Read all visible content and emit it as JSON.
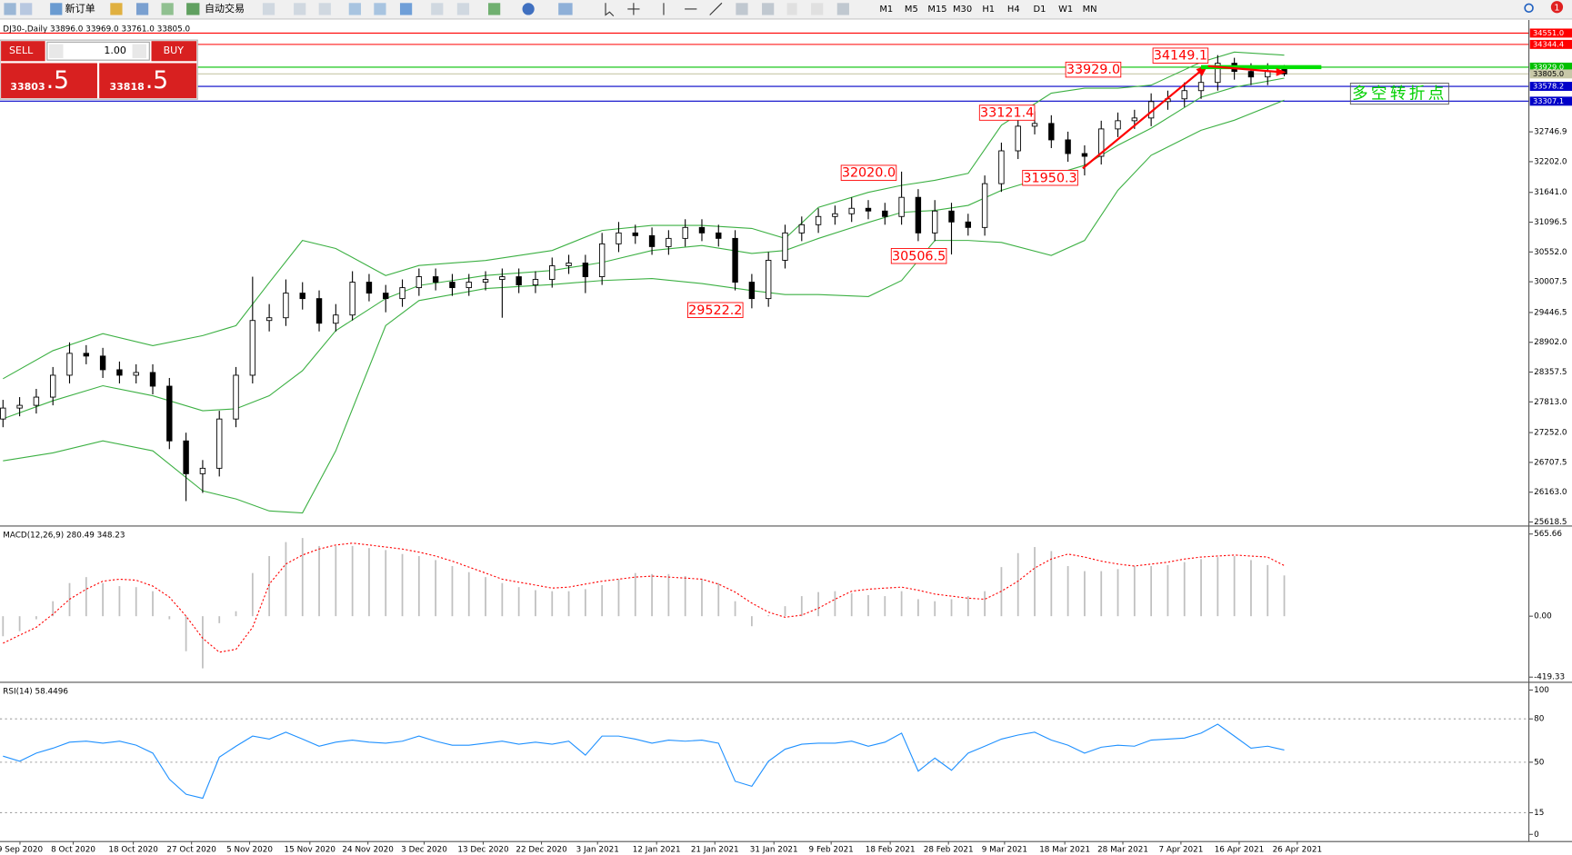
{
  "toolbar": {
    "buttons": [
      "新订单",
      "自动交易"
    ],
    "timeframes": [
      "M1",
      "M5",
      "M15",
      "M30",
      "H1",
      "H4",
      "D1",
      "W1",
      "MN"
    ],
    "notification_count": 1
  },
  "trade_panel": {
    "sell": "SELL",
    "buy": "BUY",
    "volume": "1.00",
    "sell_price": {
      "main": "33803",
      "big": ".5"
    },
    "buy_price": {
      "main": "33818",
      "big": ".5"
    }
  },
  "chart_data": [
    {
      "type": "candlestick",
      "title": "DJ30-,Daily  33896.0 33969.0 33761.0 33805.0",
      "open": [
        27500,
        27700,
        27750,
        27900,
        28300,
        28700,
        28650,
        28400,
        28300,
        28350,
        28100,
        27100,
        26500,
        26600,
        27500,
        28300,
        29300,
        29350,
        29800,
        29700,
        29250,
        29400,
        30000,
        29800,
        29700,
        29900,
        30100,
        30000,
        29900,
        30000,
        30050,
        30100,
        29950,
        30050,
        30300,
        30350,
        30100,
        30700,
        30900,
        30850,
        30650,
        30800,
        31000,
        30900,
        30800,
        30000,
        29700,
        30400,
        30900,
        31050,
        31200,
        31250,
        31350,
        31300,
        31200,
        31550,
        30900,
        31300,
        31100,
        31000,
        31800,
        32400,
        32850,
        32900,
        32600,
        32350,
        32300,
        32800,
        32950,
        33000,
        33300,
        33350,
        33500,
        33650,
        34000,
        33850,
        33750,
        33896.0
      ],
      "high": [
        27850,
        27900,
        28050,
        28450,
        28900,
        28850,
        28800,
        28550,
        28500,
        28500,
        28250,
        27250,
        26750,
        27650,
        28450,
        30100,
        29600,
        30050,
        30000,
        29850,
        29600,
        30200,
        30150,
        29950,
        30050,
        30250,
        30250,
        30150,
        30150,
        30200,
        30250,
        30250,
        30200,
        30450,
        30500,
        30500,
        30900,
        31100,
        31050,
        31000,
        30950,
        31150,
        31150,
        31050,
        30950,
        30150,
        30550,
        31050,
        31200,
        31350,
        31400,
        31550,
        31500,
        31450,
        32020.0,
        31700,
        31500,
        31450,
        31250,
        31950,
        32550,
        33000,
        33121.4,
        33050,
        32750,
        32500,
        32950,
        33100,
        33150,
        33450,
        33500,
        33650,
        33850,
        34149.1,
        34100,
        34000,
        34000,
        33969.0
      ],
      "low": [
        27350,
        27550,
        27600,
        27750,
        28150,
        28500,
        28250,
        28150,
        28150,
        27950,
        26950,
        26000,
        26150,
        26450,
        27350,
        28150,
        29100,
        29200,
        29500,
        29100,
        29100,
        29300,
        29650,
        29450,
        29550,
        29750,
        29850,
        29750,
        29750,
        29850,
        29350,
        29800,
        29800,
        29900,
        30150,
        29800,
        29950,
        30550,
        30700,
        30500,
        30500,
        30650,
        30750,
        30650,
        29850,
        29522.2,
        29550,
        30250,
        30750,
        30900,
        31050,
        31100,
        31150,
        31050,
        31050,
        30750,
        30750,
        30506.5,
        30850,
        30850,
        31650,
        32250,
        32700,
        32450,
        32200,
        31950.3,
        32150,
        32650,
        32800,
        32850,
        33150,
        33200,
        33350,
        33500,
        33700,
        33600,
        33600,
        33761.0
      ],
      "close": [
        27700,
        27750,
        27900,
        28300,
        28700,
        28650,
        28400,
        28300,
        28350,
        28100,
        27100,
        26500,
        26600,
        27500,
        28300,
        29300,
        29350,
        29800,
        29700,
        29250,
        29400,
        30000,
        29800,
        29700,
        29900,
        30100,
        30000,
        29900,
        30000,
        30050,
        30100,
        29950,
        30050,
        30300,
        30350,
        30100,
        30700,
        30900,
        30850,
        30650,
        30800,
        31000,
        30900,
        30800,
        30000,
        29700,
        30400,
        30900,
        31050,
        31200,
        31250,
        31350,
        31300,
        31200,
        31550,
        30900,
        31300,
        31100,
        31000,
        31800,
        32400,
        32850,
        32900,
        32600,
        32350,
        32300,
        32800,
        32950,
        33000,
        33300,
        33350,
        33500,
        33650,
        34000,
        33850,
        33750,
        33850,
        33805.0
      ],
      "up_color": "#ffffff",
      "down_color": "#000000",
      "xlim": [
        -0.18,
        91.7
      ],
      "ylim": [
        25582,
        34753
      ],
      "yticks": [
        32746.9,
        {
          "value": 32202,
          "label": "32202.0"
        },
        {
          "value": 31641,
          "label": "31641.0"
        },
        31096.5,
        {
          "value": 30552,
          "label": "30552.0"
        },
        30007.5,
        29446.5,
        {
          "value": 28902,
          "label": "28902.0"
        },
        28357.5,
        {
          "value": 27813,
          "label": "27813.0"
        },
        {
          "value": 27252,
          "label": "27252.0"
        },
        26707.5,
        {
          "value": 26163,
          "label": "26163.0"
        },
        25618.5
      ],
      "bands": {
        "color": "#3cb043",
        "x": [
          0,
          3,
          6,
          9,
          12,
          14,
          16,
          18,
          20,
          23,
          25,
          29,
          33,
          36,
          39,
          42,
          45,
          47,
          49,
          52,
          54,
          56,
          58,
          60,
          63,
          65,
          67,
          69,
          72,
          74,
          77
        ],
        "upper": [
          28237,
          28749,
          29060,
          28841,
          29024,
          29207,
          29994,
          30763,
          30616,
          30122,
          30305,
          30397,
          30580,
          30946,
          31037,
          31037,
          30982,
          30799,
          31367,
          31641,
          31769,
          31861,
          31989,
          32868,
          33453,
          33545,
          33545,
          33600,
          34021,
          34204,
          34149
        ],
        "middle": [
          27504,
          27834,
          28108,
          27925,
          27651,
          27687,
          27925,
          28383,
          29115,
          29701,
          29939,
          30122,
          30213,
          30360,
          30580,
          30671,
          30525,
          30580,
          30799,
          31092,
          31275,
          31312,
          31403,
          31678,
          31952,
          32135,
          32502,
          32813,
          33380,
          33563,
          33728
        ],
        "lower": [
          26736,
          26882,
          27102,
          26919,
          26186,
          26040,
          25820,
          25784,
          26919,
          29207,
          29664,
          29884,
          29957,
          30030,
          30067,
          29975,
          29847,
          29774,
          29774,
          29738,
          30030,
          30763,
          30763,
          30726,
          30488,
          30763,
          31678,
          32319,
          32776,
          32959,
          33325
        ]
      },
      "levels": [
        {
          "value": 34551,
          "label": "34551.0",
          "color": "#ff0000",
          "text_color": "#ffffff"
        },
        {
          "value": 34344.4,
          "label": "34344.4",
          "color": "#ff0000",
          "text_color": "#ffffff"
        },
        {
          "value": 33929,
          "label": "33929.0",
          "color": "#00c000",
          "text_color": "#ffffff"
        },
        {
          "value": 33805,
          "label": "33805.0",
          "color": "#c8c8a8",
          "text_color": "#000000"
        },
        {
          "value": 33578.2,
          "label": "33578.2",
          "color": "#0000c8",
          "text_color": "#ffffff"
        },
        {
          "value": 33307.1,
          "label": "33307.1",
          "color": "#0000c8",
          "text_color": "#ffffff"
        }
      ],
      "annotations": [
        {
          "text": "34149.1"
        },
        {
          "text": "33929.0"
        },
        {
          "text": "33121.4"
        },
        {
          "text": "32020.0"
        },
        {
          "text": "31950.3"
        },
        {
          "text": "30506.5"
        },
        {
          "text": "29522.2"
        }
      ],
      "annotation_color": "#ff0000",
      "note": {
        "text": "多空转折点",
        "color": "#00d000"
      }
    },
    {
      "type": "macd",
      "title": "MACD(12,26,9) 280.49 348.23",
      "histogram": [
        -138,
        -103,
        -21,
        103,
        228,
        269,
        228,
        207,
        200,
        172,
        -21,
        -241,
        -359,
        -48,
        34,
        297,
        414,
        510,
        538,
        483,
        483,
        483,
        469,
        455,
        428,
        414,
        386,
        345,
        303,
        269,
        228,
        200,
        179,
        172,
        172,
        186,
        214,
        255,
        297,
        290,
        290,
        276,
        255,
        228,
        103,
        -69,
        7,
        69,
        138,
        166,
        172,
        159,
        145,
        138,
        172,
        117,
        103,
        117,
        138,
        172,
        338,
        434,
        476,
        448,
        345,
        310,
        310,
        324,
        345,
        345,
        352,
        372,
        393,
        407,
        414,
        386,
        352,
        280.49
      ],
      "signal": [
        -186,
        -131,
        -76,
        14,
        117,
        186,
        241,
        255,
        248,
        207,
        131,
        0,
        -152,
        -248,
        -228,
        -76,
        221,
        359,
        421,
        462,
        490,
        503,
        490,
        476,
        462,
        441,
        414,
        379,
        338,
        297,
        255,
        234,
        214,
        193,
        200,
        221,
        241,
        255,
        269,
        276,
        269,
        262,
        255,
        221,
        166,
        90,
        28,
        -7,
        7,
        55,
        117,
        172,
        186,
        193,
        200,
        179,
        152,
        138,
        124,
        117,
        172,
        241,
        331,
        393,
        428,
        407,
        379,
        359,
        345,
        359,
        372,
        393,
        407,
        414,
        421,
        414,
        407,
        348.23
      ],
      "hist_color": "#c0c0c0",
      "signal_color": "#ff0000",
      "xlim": [
        -0.18,
        91.7
      ],
      "ylim": [
        -441,
        607
      ],
      "yticks": [
        565.66,
        {
          "value": 0,
          "label": "0.00"
        },
        -419.33
      ]
    },
    {
      "type": "line",
      "title": "RSI(14) 58.4496",
      "values": [
        54.2,
        50.7,
        56.3,
        59.7,
        63.9,
        64.6,
        63.2,
        64.6,
        61.8,
        56.3,
        38.2,
        27.8,
        25.0,
        53.5,
        61.1,
        68.1,
        66.0,
        70.8,
        66.0,
        61.1,
        63.9,
        65.3,
        63.9,
        63.2,
        64.6,
        68.1,
        64.6,
        61.8,
        61.8,
        63.2,
        64.6,
        62.5,
        63.9,
        62.5,
        64.6,
        54.9,
        68.1,
        68.1,
        66.0,
        63.2,
        65.3,
        64.6,
        65.3,
        63.2,
        36.8,
        33.3,
        50.7,
        59.0,
        62.5,
        63.2,
        63.2,
        64.6,
        61.1,
        63.9,
        70.1,
        43.8,
        52.8,
        44.4,
        56.3,
        61.1,
        66.0,
        68.8,
        70.8,
        65.3,
        61.8,
        56.3,
        60.4,
        61.8,
        61.1,
        65.3,
        66.0,
        66.7,
        70.1,
        76.4,
        68.1,
        59.7,
        61.1,
        58.4496
      ],
      "color": "#1e90ff",
      "xlim": [
        -0.18,
        91.7
      ],
      "ylim": [
        -5,
        104
      ],
      "yticks": [
        100,
        80,
        50,
        15,
        0
      ],
      "grid_levels": [
        80,
        50,
        15
      ],
      "xticks": [
        {
          "value": 1.02,
          "label": "9 Sep 2020"
        },
        {
          "value": 4.22,
          "label": "8 Oct 2020"
        },
        {
          "value": 7.83,
          "label": "18 Oct 2020"
        },
        {
          "value": 11.33,
          "label": "27 Oct 2020"
        },
        {
          "value": 14.82,
          "label": "5 Nov 2020"
        },
        {
          "value": 18.44,
          "label": "15 Nov 2020"
        },
        {
          "value": 21.93,
          "label": "24 Nov 2020"
        },
        {
          "value": 25.31,
          "label": "3 Dec 2020"
        },
        {
          "value": 28.86,
          "label": "13 Dec 2020"
        },
        {
          "value": 32.36,
          "label": "22 Dec 2020"
        },
        {
          "value": 35.73,
          "label": "3 Jan 2021"
        },
        {
          "value": 39.28,
          "label": "12 Jan 2021"
        },
        {
          "value": 42.78,
          "label": "21 Jan 2021"
        },
        {
          "value": 46.33,
          "label": "31 Jan 2021"
        },
        {
          "value": 49.77,
          "label": "9 Feb 2021"
        },
        {
          "value": 53.32,
          "label": "18 Feb 2021"
        },
        {
          "value": 56.82,
          "label": "28 Feb 2021"
        },
        {
          "value": 60.19,
          "label": "9 Mar 2021"
        },
        {
          "value": 63.81,
          "label": "18 Mar 2021"
        },
        {
          "value": 67.3,
          "label": "28 Mar 2021"
        },
        {
          "value": 70.79,
          "label": "7 Apr 2021"
        },
        {
          "value": 74.29,
          "label": "16 Apr 2021"
        },
        {
          "value": 77.78,
          "label": "26 Apr 2021"
        }
      ]
    }
  ]
}
